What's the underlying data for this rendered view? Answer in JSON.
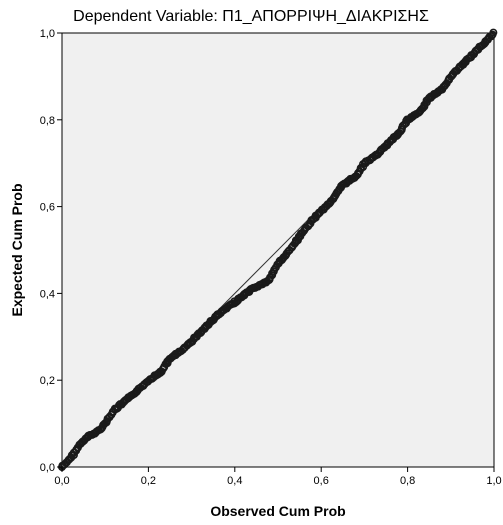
{
  "chart_data": {
    "type": "scatter",
    "title": "Dependent Variable: Π1_ΑΠΟΡΡΙΨΗ_ΔΙΑΚΡΙΣΗΣ",
    "xlabel": "Observed Cum Prob",
    "ylabel": "Expected Cum Prob",
    "xlim": [
      0,
      1
    ],
    "ylim": [
      0,
      1
    ],
    "x_ticks": [
      "0,0",
      "0,2",
      "0,4",
      "0,6",
      "0,8",
      "1,0"
    ],
    "y_ticks": [
      "0,0",
      "0,2",
      "0,4",
      "0,6",
      "0,8",
      "1,0"
    ],
    "grid": false,
    "reference_line": {
      "from": [
        0,
        0
      ],
      "to": [
        1,
        1
      ]
    },
    "plot_background": "#f0f0f0",
    "marker_color": "#1a1a1a",
    "point_curve": [
      [
        0.0,
        0.0
      ],
      [
        0.02,
        0.02
      ],
      [
        0.04,
        0.05
      ],
      [
        0.06,
        0.07
      ],
      [
        0.08,
        0.08
      ],
      [
        0.1,
        0.1
      ],
      [
        0.12,
        0.13
      ],
      [
        0.15,
        0.155
      ],
      [
        0.18,
        0.18
      ],
      [
        0.2,
        0.2
      ],
      [
        0.23,
        0.22
      ],
      [
        0.25,
        0.25
      ],
      [
        0.28,
        0.27
      ],
      [
        0.3,
        0.29
      ],
      [
        0.33,
        0.32
      ],
      [
        0.36,
        0.35
      ],
      [
        0.4,
        0.38
      ],
      [
        0.44,
        0.41
      ],
      [
        0.48,
        0.43
      ],
      [
        0.5,
        0.47
      ],
      [
        0.52,
        0.49
      ],
      [
        0.55,
        0.53
      ],
      [
        0.58,
        0.57
      ],
      [
        0.6,
        0.59
      ],
      [
        0.63,
        0.62
      ],
      [
        0.65,
        0.65
      ],
      [
        0.68,
        0.67
      ],
      [
        0.7,
        0.7
      ],
      [
        0.73,
        0.72
      ],
      [
        0.75,
        0.74
      ],
      [
        0.78,
        0.77
      ],
      [
        0.8,
        0.8
      ],
      [
        0.83,
        0.82
      ],
      [
        0.85,
        0.85
      ],
      [
        0.88,
        0.87
      ],
      [
        0.9,
        0.9
      ],
      [
        0.92,
        0.92
      ],
      [
        0.95,
        0.95
      ],
      [
        0.98,
        0.98
      ],
      [
        1.0,
        1.0
      ]
    ]
  }
}
